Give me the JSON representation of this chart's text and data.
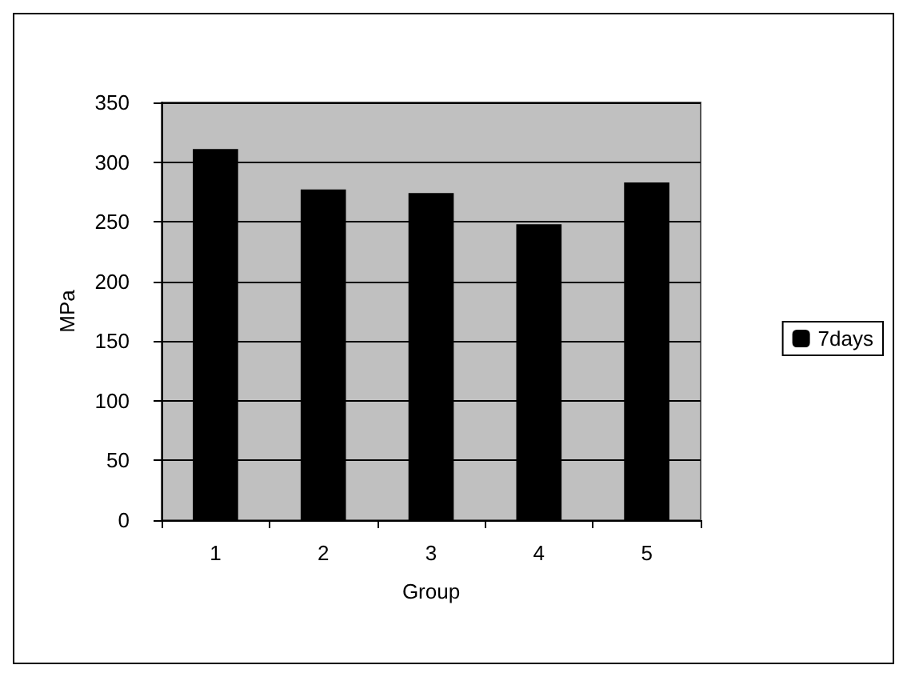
{
  "chart_data": {
    "type": "bar",
    "xlabel": "Group",
    "ylabel": "MPa",
    "categories": [
      "1",
      "2",
      "3",
      "4",
      "5"
    ],
    "series": [
      {
        "name": "7days",
        "color": "#000000",
        "values": [
          311,
          277,
          274,
          248,
          283
        ]
      }
    ],
    "ylim": [
      0,
      350
    ],
    "yticks": [
      0,
      50,
      100,
      150,
      200,
      250,
      300,
      350
    ],
    "grid": "y",
    "legend": "right"
  }
}
